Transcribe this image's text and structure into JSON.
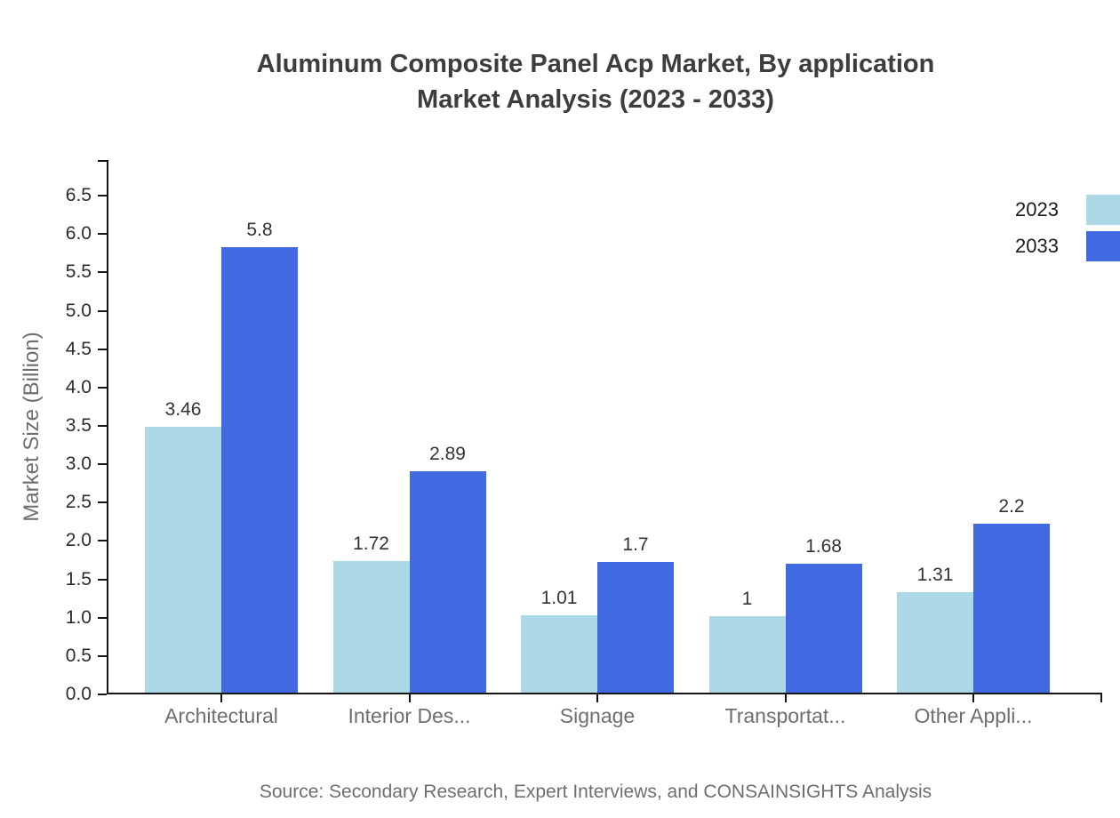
{
  "title": {
    "line1": "Aluminum Composite Panel Acp Market, By application",
    "line2": "Market Analysis (2023 - 2033)"
  },
  "source": "Source: Secondary Research, Expert Interviews, and CONSAINSIGHTS Analysis",
  "legend": {
    "items": [
      {
        "label": "2023",
        "color": "#ADD8E6"
      },
      {
        "label": "2033",
        "color": "#4169E1"
      }
    ]
  },
  "chart_data": {
    "type": "bar",
    "title": "Aluminum Composite Panel Acp Market, By application Market Analysis (2023 - 2033)",
    "categories": [
      "Architectural",
      "Interior Des...",
      "Signage",
      "Transportat...",
      "Other Appli..."
    ],
    "series": [
      {
        "name": "2023",
        "color": "#ADD8E6",
        "values": [
          3.46,
          1.72,
          1.01,
          1,
          1.31
        ],
        "labels": [
          "3.46",
          "1.72",
          "1.01",
          "1",
          "1.31"
        ]
      },
      {
        "name": "2033",
        "color": "#4169E1",
        "values": [
          5.8,
          2.89,
          1.7,
          1.68,
          2.2
        ],
        "labels": [
          "5.8",
          "2.89",
          "1.7",
          "1.68",
          "2.2"
        ]
      }
    ],
    "xlabel": "",
    "ylabel": "Market Size (Billion)",
    "ylim": [
      0,
      7
    ],
    "ytick_labels": [
      "0.0",
      "0.5",
      "1.0",
      "1.5",
      "2.0",
      "2.5",
      "3.0",
      "3.5",
      "4.0",
      "4.5",
      "5.0",
      "5.5",
      "6.0",
      "6.5"
    ],
    "grid": false,
    "legend_position": "top-right"
  },
  "colors": {
    "series_2023": "#ADD8E6",
    "series_2033": "#4169E1",
    "axis": "#141414",
    "title_text": "#3d3d3d",
    "muted_text": "#6e6e6e",
    "tick_text": "#2b2b2b",
    "background": "#ffffff"
  }
}
